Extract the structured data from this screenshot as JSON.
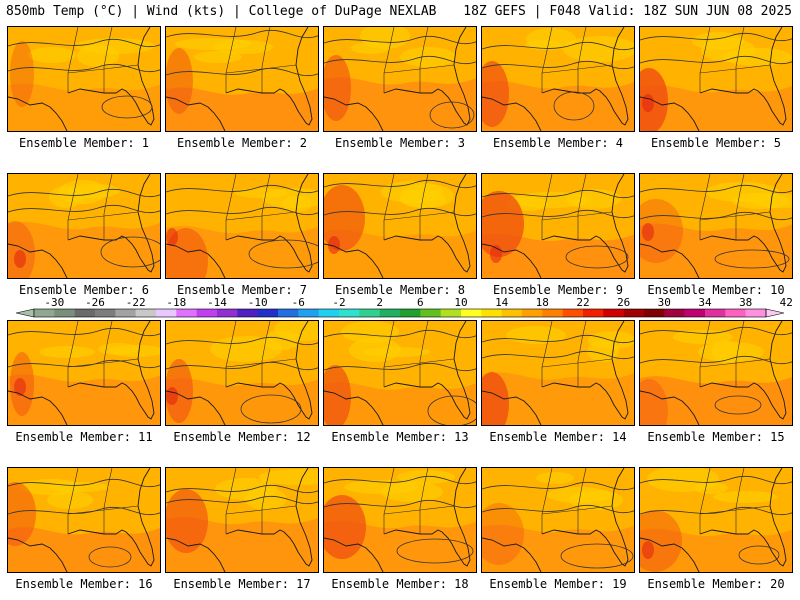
{
  "header": {
    "left": "850mb Temp (°C) | Wind (kts) | College of DuPage NEXLAB",
    "right": "18Z GEFS | F048 Valid: 18Z SUN JUN 08 2025"
  },
  "members": [
    "Ensemble Member: 1",
    "Ensemble Member: 2",
    "Ensemble Member: 3",
    "Ensemble Member: 4",
    "Ensemble Member: 5",
    "Ensemble Member: 6",
    "Ensemble Member: 7",
    "Ensemble Member: 8",
    "Ensemble Member: 9",
    "Ensemble Member: 10",
    "Ensemble Member: 11",
    "Ensemble Member: 12",
    "Ensemble Member: 13",
    "Ensemble Member: 14",
    "Ensemble Member: 15",
    "Ensemble Member: 16",
    "Ensemble Member: 17",
    "Ensemble Member: 18",
    "Ensemble Member: 19",
    "Ensemble Member: 20"
  ],
  "colorbar": {
    "ticks": [
      "-30",
      "-26",
      "-22",
      "-18",
      "-14",
      "-10",
      "-6",
      "-2",
      "2",
      "6",
      "10",
      "14",
      "18",
      "22",
      "26",
      "30",
      "34",
      "38",
      "42"
    ],
    "colors": [
      "#8fa88f",
      "#7a8f7a",
      "#6a6a6a",
      "#7d7d7d",
      "#a3a3a3",
      "#c8c8c8",
      "#e8c8ff",
      "#e070ff",
      "#c040f0",
      "#9030d0",
      "#5020c0",
      "#2030c8",
      "#2070e0",
      "#20a0f0",
      "#20d0f0",
      "#30e0d0",
      "#30d090",
      "#20b060",
      "#20a030",
      "#60c020",
      "#b0e020",
      "#ffff20",
      "#ffe000",
      "#ffc000",
      "#ffa000",
      "#ff8000",
      "#ff5000",
      "#f02000",
      "#d00000",
      "#a00000",
      "#800000",
      "#a00040",
      "#c00070",
      "#e030a0",
      "#ff60c0",
      "#ff90e0"
    ]
  }
}
